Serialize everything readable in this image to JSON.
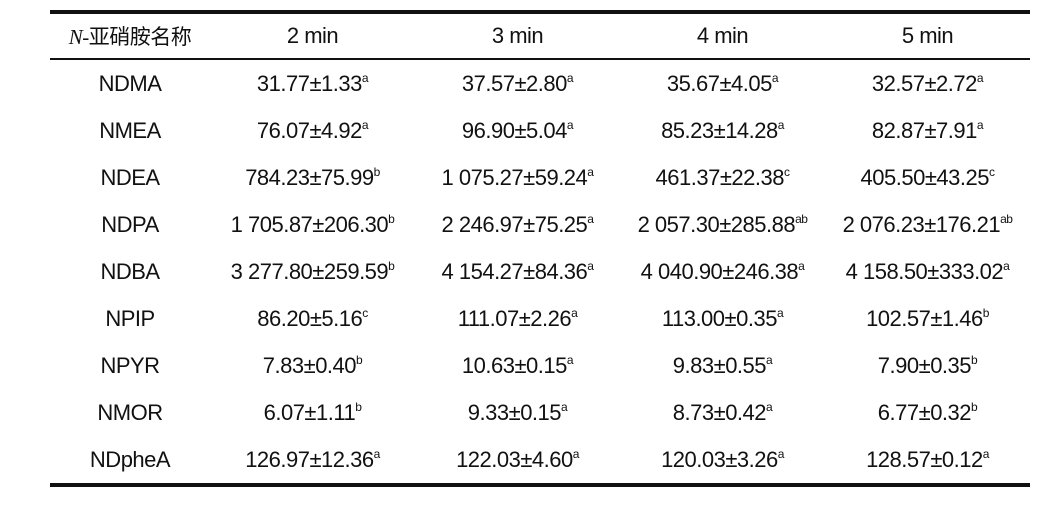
{
  "table": {
    "header": [
      {
        "italic": "N",
        "rest": "-亚硝胺名称"
      },
      "2 min",
      "3 min",
      "4 min",
      "5 min"
    ],
    "rows": [
      [
        "NDMA",
        {
          "text": "31.77±1.33",
          "sup": "a"
        },
        {
          "text": "37.57±2.80",
          "sup": "a"
        },
        {
          "text": "35.67±4.05",
          "sup": "a"
        },
        {
          "text": "32.57±2.72",
          "sup": "a"
        }
      ],
      [
        "NMEA",
        {
          "text": "76.07±4.92",
          "sup": "a"
        },
        {
          "text": "96.90±5.04",
          "sup": "a"
        },
        {
          "text": "85.23±14.28",
          "sup": "a"
        },
        {
          "text": "82.87±7.91",
          "sup": "a"
        }
      ],
      [
        "NDEA",
        {
          "text": "784.23±75.99",
          "sup": "b"
        },
        {
          "text": "1 075.27±59.24",
          "sup": "a"
        },
        {
          "text": "461.37±22.38",
          "sup": "c"
        },
        {
          "text": "405.50±43.25",
          "sup": "c"
        }
      ],
      [
        "NDPA",
        {
          "text": "1 705.87±206.30",
          "sup": "b"
        },
        {
          "text": "2 246.97±75.25",
          "sup": "a"
        },
        {
          "text": "2 057.30±285.88",
          "sup": "ab"
        },
        {
          "text": "2 076.23±176.21",
          "sup": "ab"
        }
      ],
      [
        "NDBA",
        {
          "text": "3 277.80±259.59",
          "sup": "b"
        },
        {
          "text": "4 154.27±84.36",
          "sup": "a"
        },
        {
          "text": "4 040.90±246.38",
          "sup": "a"
        },
        {
          "text": "4 158.50±333.02",
          "sup": "a"
        }
      ],
      [
        "NPIP",
        {
          "text": "86.20±5.16",
          "sup": "c"
        },
        {
          "text": "111.07±2.26",
          "sup": "a"
        },
        {
          "text": "113.00±0.35",
          "sup": "a"
        },
        {
          "text": "102.57±1.46",
          "sup": "b"
        }
      ],
      [
        "NPYR",
        {
          "text": "7.83±0.40",
          "sup": "b"
        },
        {
          "text": "10.63±0.15",
          "sup": "a"
        },
        {
          "text": "9.83±0.55",
          "sup": "a"
        },
        {
          "text": "7.90±0.35",
          "sup": "b"
        }
      ],
      [
        "NMOR",
        {
          "text": "6.07±1.11",
          "sup": "b"
        },
        {
          "text": "9.33±0.15",
          "sup": "a"
        },
        {
          "text": "8.73±0.42",
          "sup": "a"
        },
        {
          "text": "6.77±0.32",
          "sup": "b"
        }
      ],
      [
        "NDpheA",
        {
          "text": "126.97±12.36",
          "sup": "a"
        },
        {
          "text": "122.03±4.60",
          "sup": "a"
        },
        {
          "text": "120.03±3.26",
          "sup": "a"
        },
        {
          "text": "128.57±0.12",
          "sup": "a"
        }
      ]
    ]
  }
}
